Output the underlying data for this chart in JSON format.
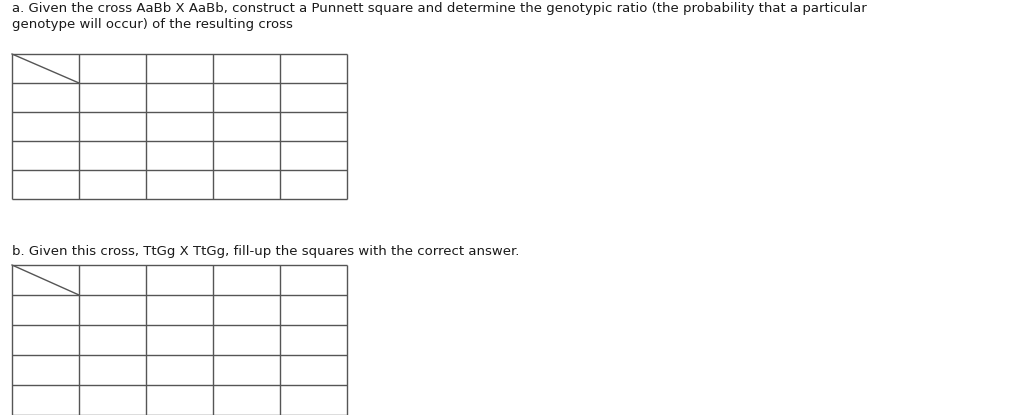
{
  "background_color": "#ffffff",
  "text_color": "#1a1a1a",
  "grid_color": "#555555",
  "title_a": "a. Given the cross AaBb X AaBb, construct a Punnett square and determine the genotypic ratio (the probability that a particular\ngenotype will occur) of the resulting cross",
  "title_b": "b. Given this cross, TtGg X TtGg, fill-up the squares with the correct answer.",
  "title_fontsize": 9.5,
  "table_rows": 5,
  "table_cols": 5,
  "line_width": 1.0,
  "grid_color_r": 80,
  "grid_color_g": 80,
  "grid_color_b": 80
}
